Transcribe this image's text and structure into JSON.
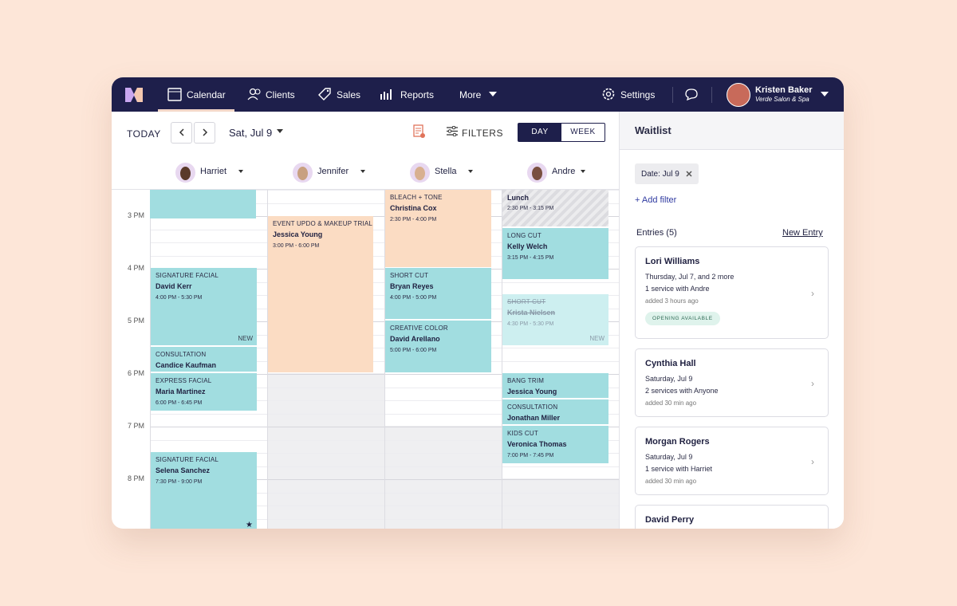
{
  "nav": {
    "items": [
      "Calendar",
      "Clients",
      "Sales",
      "Reports",
      "More"
    ],
    "settings": "Settings",
    "user": {
      "name": "Kristen Baker",
      "org": "Verde Salon & Spa"
    }
  },
  "toolbar": {
    "today": "TODAY",
    "date": "Sat, Jul 9",
    "filters": "FILTERS",
    "views": [
      "DAY",
      "WEEK"
    ]
  },
  "staff": [
    "Harriet",
    "Jennifer",
    "Stella",
    "Andre"
  ],
  "times": [
    "3 PM",
    "4 PM",
    "5 PM",
    "6 PM",
    "7 PM",
    "8 PM"
  ],
  "appointments": [
    {
      "service": "SIGNATURE FACIAL",
      "client": "David Kerr",
      "time": "4:00 PM - 5:30 PM",
      "tag": "NEW"
    },
    {
      "service": "CONSULTATION",
      "client": "Candice Kaufman"
    },
    {
      "service": "EXPRESS FACIAL",
      "client": "Maria Martinez",
      "time": "6:00 PM - 6:45 PM"
    },
    {
      "service": "SIGNATURE FACIAL",
      "client": "Selena Sanchez",
      "time": "7:30 PM - 9:00 PM"
    },
    {
      "service": "EVENT UPDO & MAKEUP TRIAL",
      "client": "Jessica Young",
      "time": "3:00 PM - 6:00 PM"
    },
    {
      "service": "BLEACH + TONE",
      "client": "Christina Cox",
      "time": "2:30 PM - 4:00 PM"
    },
    {
      "service": "SHORT CUT",
      "client": "Bryan Reyes",
      "time": "4:00 PM - 5:00 PM"
    },
    {
      "service": "CREATIVE COLOR",
      "client": "David Arellano",
      "time": "5:00 PM - 6:00 PM"
    },
    {
      "client": "Lunch",
      "time": "2:30 PM - 3:15 PM"
    },
    {
      "service": "LONG CUT",
      "client": "Kelly Welch",
      "time": "3:15 PM - 4:15 PM"
    },
    {
      "service": "SHORT CUT",
      "client": "Krista Nielsen",
      "time": "4:30 PM - 5:30 PM",
      "tag": "NEW"
    },
    {
      "service": "BANG TRIM",
      "client": "Jessica Young"
    },
    {
      "service": "CONSULTATION",
      "client": "Jonathan Miller"
    },
    {
      "service": "KIDS CUT",
      "client": "Veronica Thomas",
      "time": "7:00 PM - 7:45 PM"
    }
  ],
  "waitlist": {
    "title": "Waitlist",
    "filter": "Date: Jul 9",
    "add_filter": "+ Add filter",
    "entries_label": "Entries (5)",
    "new_entry": "New Entry",
    "entries": [
      {
        "name": "Lori Williams",
        "date": "Thursday, Jul 7, and 2 more",
        "service": "1 service with Andre",
        "added": "added 3 hours ago",
        "badge": "OPENING AVAILABLE"
      },
      {
        "name": "Cynthia Hall",
        "date": "Saturday, Jul 9",
        "service": "2 services with Anyone",
        "added": "added 30 min ago"
      },
      {
        "name": "Morgan Rogers",
        "date": "Saturday, Jul 9",
        "service": "1 service with Harriet",
        "added": "added 30 min ago"
      },
      {
        "name": "David Perry"
      }
    ]
  }
}
